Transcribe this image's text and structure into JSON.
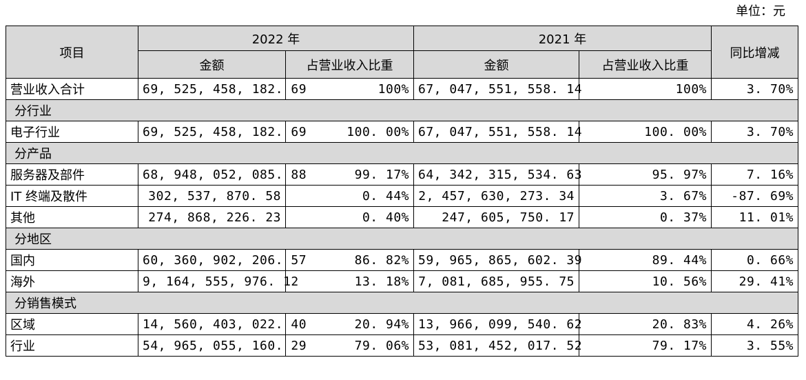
{
  "unit": "单位：元",
  "header": {
    "item": "项目",
    "year_2022": "2022 年",
    "year_2021": "2021 年",
    "yoy": "同比增减",
    "amount": "金额",
    "share": "占营业收入比重"
  },
  "rows": [
    {
      "type": "data",
      "kind": "total",
      "label": "营业收入合计",
      "amt2022": "69, 525, 458, 182. 69",
      "pct2022": "100%",
      "amt2021": "67, 047, 551, 558. 14",
      "pct2021": "100%",
      "yoy": "3. 70%"
    },
    {
      "type": "section",
      "label": "分行业"
    },
    {
      "type": "data",
      "label": "电子行业",
      "amt2022": "69, 525, 458, 182. 69",
      "pct2022": "100. 00%",
      "amt2021": "67, 047, 551, 558. 14",
      "pct2021": "100. 00%",
      "yoy": "3. 70%"
    },
    {
      "type": "section",
      "label": "分产品"
    },
    {
      "type": "data",
      "label": "服务器及部件",
      "amt2022": "68, 948, 052, 085. 88",
      "pct2022": "99. 17%",
      "amt2021": "64, 342, 315, 534. 63",
      "pct2021": "95. 97%",
      "yoy": "7. 16%"
    },
    {
      "type": "data",
      "label": "IT 终端及散件",
      "amt2022": "302, 537, 870. 58",
      "pct2022": "0. 44%",
      "amt2021": "2, 457, 630, 273. 34",
      "pct2021": "3. 67%",
      "yoy": "-87. 69%"
    },
    {
      "type": "data",
      "label": "其他",
      "amt2022": "274, 868, 226. 23",
      "pct2022": "0. 40%",
      "amt2021": "247, 605, 750. 17",
      "pct2021": "0. 37%",
      "yoy": "11. 01%"
    },
    {
      "type": "section",
      "label": "分地区"
    },
    {
      "type": "data",
      "label": "国内",
      "amt2022": "60, 360, 902, 206. 57",
      "pct2022": "86. 82%",
      "amt2021": "59, 965, 865, 602. 39",
      "pct2021": "89. 44%",
      "yoy": "0. 66%"
    },
    {
      "type": "data",
      "label": "海外",
      "amt2022": "9, 164, 555, 976. 12",
      "pct2022": "13. 18%",
      "amt2021": "7, 081, 685, 955. 75",
      "pct2021": "10. 56%",
      "yoy": "29. 41%"
    },
    {
      "type": "section",
      "label": "分销售模式"
    },
    {
      "type": "data",
      "label": "区域",
      "amt2022": "14, 560, 403, 022. 40",
      "pct2022": "20. 94%",
      "amt2021": "13, 966, 099, 540. 62",
      "pct2021": "20. 83%",
      "yoy": "4. 26%"
    },
    {
      "type": "data",
      "label": "行业",
      "amt2022": "54, 965, 055, 160. 29",
      "pct2022": "79. 06%",
      "amt2021": "53, 081, 452, 017. 52",
      "pct2021": "79. 17%",
      "yoy": "3. 55%"
    }
  ],
  "colors": {
    "header_bg": "#d9d9d9",
    "section_bg": "#d9d9d9",
    "border": "#000000",
    "text": "#000000"
  }
}
